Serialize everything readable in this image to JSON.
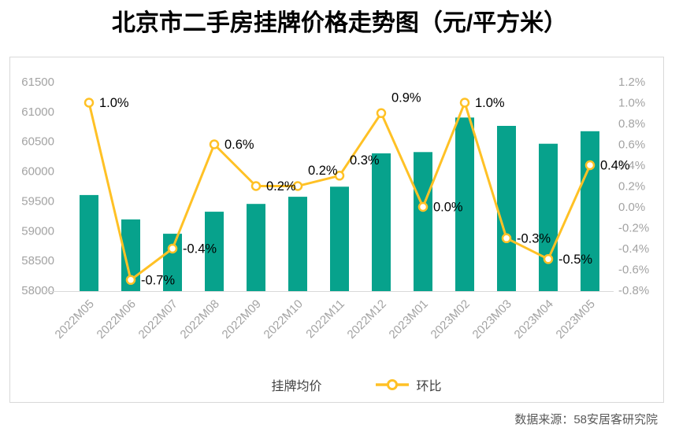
{
  "page": {
    "title": "北京市二手房挂牌价格走势图（元/平方米）",
    "source": "数据来源：58安居客研究院"
  },
  "legend": {
    "bar_label": "挂牌均价",
    "line_label": "环比"
  },
  "colors": {
    "bar": "#07A28C",
    "line": "#FFC125",
    "axis_text": "#A3A3A3",
    "data_label_text": "#000000",
    "panel_border": "#D9D9D9",
    "source_text": "#595959"
  },
  "chart_data": {
    "type": "bar+line combo",
    "title": "北京市二手房挂牌价格走势图（元/平方米）",
    "categories": [
      "2022M05",
      "2022M06",
      "2022M07",
      "2022M08",
      "2022M09",
      "2022M10",
      "2022M11",
      "2022M12",
      "2023M01",
      "2023M02",
      "2023M03",
      "2023M04",
      "2023M05"
    ],
    "series": [
      {
        "name": "挂牌均价",
        "type": "bar",
        "yaxis": "left",
        "color": "#07A28C",
        "values": [
          59600,
          59190,
          58950,
          59320,
          59450,
          59570,
          59740,
          60300,
          60320,
          60900,
          60760,
          60460,
          60670
        ]
      },
      {
        "name": "环比",
        "type": "line",
        "yaxis": "right",
        "color": "#FFC125",
        "marker": "circle-open",
        "values": [
          1.0,
          -0.7,
          -0.4,
          0.6,
          0.2,
          0.2,
          0.3,
          0.9,
          0.0,
          1.0,
          -0.3,
          -0.5,
          0.4
        ],
        "point_labels": [
          "1.0%",
          "-0.7%",
          "-0.4%",
          "0.6%",
          "0.2%",
          "0.2%",
          "0.3%",
          "0.9%",
          "0.0%",
          "1.0%",
          "-0.3%",
          "-0.5%",
          "0.4%"
        ]
      }
    ],
    "left_axis": {
      "min": 58000,
      "max": 61500,
      "step": 500,
      "tick_labels": [
        "61500",
        "61000",
        "60500",
        "60000",
        "59500",
        "59000",
        "58500",
        "58000"
      ]
    },
    "right_axis": {
      "min": -0.8,
      "max": 1.2,
      "step": 0.2,
      "tick_labels": [
        "1.2%",
        "1.0%",
        "0.8%",
        "0.6%",
        "0.4%",
        "0.2%",
        "0.0%",
        "-0.2%",
        "-0.4%",
        "-0.6%",
        "-0.8%"
      ]
    },
    "grid": false,
    "legend_position": "bottom",
    "x_label_rotation": -45,
    "label_dy_hint": [
      0,
      0,
      0,
      0,
      0,
      -20,
      -20,
      -20,
      0,
      0,
      0,
      0,
      0
    ]
  }
}
